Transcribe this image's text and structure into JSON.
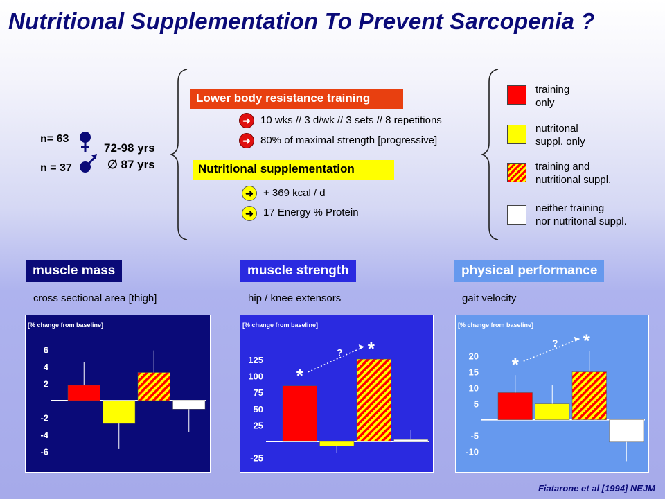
{
  "title": "Nutritional Supplementation To Prevent Sarcopenia ?",
  "cohort": {
    "n_female": "n= 63",
    "n_male": "n = 37",
    "age_range": "72-98 yrs",
    "mean_age": "∅ 87  yrs",
    "female_icon": "female-symbol",
    "male_icon": "male-symbol"
  },
  "protocol": {
    "training_title": "Lower body resistance training",
    "training_items": [
      "10 wks // 3 d/wk  // 3 sets // 8 repetitions",
      "80% of maximal strength [progressive]"
    ],
    "nutrition_title": "Nutritional supplementation",
    "nutrition_items": [
      "+ 369 kcal / d",
      "17 Energy % Protein"
    ]
  },
  "legend": [
    {
      "label": "training\nonly",
      "fill": "#ff0000"
    },
    {
      "label": "nutritonal\nsuppl. only",
      "fill": "#ffff00"
    },
    {
      "label": "training and\nnutritional suppl.",
      "fill": "hatch"
    },
    {
      "label": "neither training\nnor nutritonal suppl.",
      "fill": "#ffffff"
    }
  ],
  "colors": {
    "training": "#ff0000",
    "nutrition": "#ffff00",
    "neither": "#ffffff",
    "panel1": "#0a0a78",
    "panel2": "#2a2ae0",
    "panel3": "#6699ee"
  },
  "chart_data": [
    {
      "type": "bar",
      "title": "muscle mass",
      "subtitle": "cross sectional area [thigh]",
      "ylabel": "[% change from baseline]",
      "categories": [
        "training only",
        "nutritonal suppl. only",
        "training and nutritional suppl.",
        "neither training nor nutritonal suppl."
      ],
      "values": [
        1.8,
        -2.7,
        3.3,
        -1.0
      ],
      "errors": [
        2.7,
        3.0,
        2.6,
        2.7
      ],
      "yticks": [
        6,
        4,
        2,
        -2,
        -4,
        -6
      ],
      "ylim": [
        -7.5,
        7.5
      ],
      "annotations": []
    },
    {
      "type": "bar",
      "title": "muscle strength",
      "subtitle": "hip / knee extensors",
      "ylabel": "[% change from baseline]",
      "categories": [
        "training only",
        "nutritonal suppl. only",
        "training and nutritional suppl.",
        "neither training nor nutritonal suppl."
      ],
      "values": [
        85,
        -7,
        126,
        3
      ],
      "errors": [
        0,
        10,
        0,
        14
      ],
      "yticks": [
        125,
        100,
        75,
        50,
        25,
        -25
      ],
      "ylim": [
        -35,
        160
      ],
      "annotations": [
        "*",
        "*",
        "?"
      ]
    },
    {
      "type": "bar",
      "title": "physical performance",
      "subtitle": "gait velocity",
      "ylabel": "[% change from baseline]",
      "categories": [
        "training only",
        "nutritonal suppl. only",
        "training and nutritional suppl.",
        "neither training nor nutritonal suppl."
      ],
      "values": [
        8.5,
        5,
        15,
        -7
      ],
      "errors": [
        5.5,
        6,
        6.5,
        6
      ],
      "yticks": [
        20,
        15,
        10,
        5,
        -5,
        -10
      ],
      "ylim": [
        -14,
        26
      ],
      "annotations": [
        "*",
        "*",
        "?"
      ]
    }
  ],
  "source": "Fiatarone et al [1994] NEJM"
}
